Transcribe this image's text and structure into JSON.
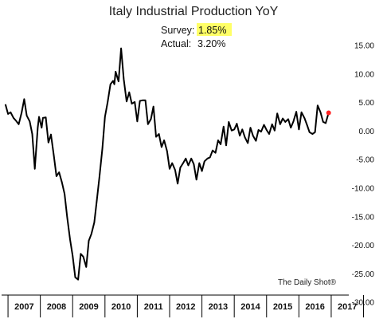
{
  "chart_data": {
    "type": "line",
    "title": "Italy Industrial Production YoY",
    "annotations": {
      "survey_label": "Survey:",
      "survey_value": "1.85%",
      "survey_highlight": "#ffff66",
      "actual_label": "Actual:",
      "actual_value": "3.20%"
    },
    "source": "The Daily Shot®",
    "x_tick_labels": [
      "2007",
      "2008",
      "2009",
      "2010",
      "2011",
      "2012",
      "2013",
      "2014",
      "2015",
      "2016",
      "2017"
    ],
    "xlim": [
      2006.9,
      2017.1
    ],
    "ylim": [
      -30,
      17
    ],
    "y_ticks": [
      {
        "v": 15,
        "label": "15.00"
      },
      {
        "v": 10,
        "label": "10.00"
      },
      {
        "v": 5,
        "label": "5.00"
      },
      {
        "v": 0,
        "label": "0.00"
      },
      {
        "v": -5,
        "label": "-5.00"
      },
      {
        "v": -10,
        "label": "-10.00"
      },
      {
        "v": -15,
        "label": "-15.00"
      },
      {
        "v": -20,
        "label": "-20.00"
      },
      {
        "v": -25,
        "label": "-25.00"
      },
      {
        "v": -30,
        "label": "-30.00"
      }
    ],
    "grid": false,
    "y_axis_position": "right",
    "line_color": "#000000",
    "last_point_color": "#ff2222",
    "series": [
      {
        "values": [
          [
            2006.92,
            4.7
          ],
          [
            2007.0,
            3.0
          ],
          [
            2007.08,
            3.3
          ],
          [
            2007.17,
            2.3
          ],
          [
            2007.25,
            1.8
          ],
          [
            2007.33,
            1.2
          ],
          [
            2007.42,
            3.2
          ],
          [
            2007.5,
            5.6
          ],
          [
            2007.58,
            2.7
          ],
          [
            2007.67,
            1.7
          ],
          [
            2007.75,
            -0.5
          ],
          [
            2007.83,
            -6.6
          ],
          [
            2007.92,
            0.6
          ],
          [
            2007.96,
            2.5
          ],
          [
            2008.04,
            0.6
          ],
          [
            2008.08,
            2.3
          ],
          [
            2008.17,
            2.4
          ],
          [
            2008.25,
            -2.0
          ],
          [
            2008.33,
            -0.6
          ],
          [
            2008.42,
            -4.4
          ],
          [
            2008.5,
            -7.9
          ],
          [
            2008.58,
            -7.2
          ],
          [
            2008.67,
            -9.0
          ],
          [
            2008.75,
            -11.0
          ],
          [
            2008.83,
            -15.0
          ],
          [
            2008.92,
            -19.0
          ],
          [
            2009.0,
            -21.8
          ],
          [
            2009.08,
            -25.6
          ],
          [
            2009.17,
            -26.0
          ],
          [
            2009.25,
            -21.5
          ],
          [
            2009.33,
            -22.0
          ],
          [
            2009.42,
            -23.8
          ],
          [
            2009.5,
            -19.2
          ],
          [
            2009.58,
            -18.0
          ],
          [
            2009.67,
            -16.0
          ],
          [
            2009.75,
            -12.0
          ],
          [
            2009.83,
            -8.0
          ],
          [
            2009.92,
            -3.0
          ],
          [
            2010.0,
            2.5
          ],
          [
            2010.08,
            5.0
          ],
          [
            2010.17,
            8.2
          ],
          [
            2010.25,
            8.8
          ],
          [
            2010.29,
            8.2
          ],
          [
            2010.33,
            10.4
          ],
          [
            2010.42,
            8.7
          ],
          [
            2010.5,
            14.5
          ],
          [
            2010.58,
            9.1
          ],
          [
            2010.67,
            5.2
          ],
          [
            2010.75,
            6.8
          ],
          [
            2010.83,
            4.8
          ],
          [
            2010.92,
            5.1
          ],
          [
            2011.0,
            1.7
          ],
          [
            2011.08,
            5.3
          ],
          [
            2011.17,
            5.4
          ],
          [
            2011.25,
            5.4
          ],
          [
            2011.33,
            1.2
          ],
          [
            2011.42,
            2.1
          ],
          [
            2011.5,
            4.3
          ],
          [
            2011.58,
            -1.0
          ],
          [
            2011.67,
            -0.5
          ],
          [
            2011.75,
            -2.8
          ],
          [
            2011.83,
            -1.6
          ],
          [
            2011.92,
            -3.5
          ],
          [
            2012.0,
            -6.6
          ],
          [
            2012.08,
            -5.6
          ],
          [
            2012.17,
            -6.8
          ],
          [
            2012.25,
            -9.2
          ],
          [
            2012.33,
            -6.4
          ],
          [
            2012.42,
            -5.6
          ],
          [
            2012.5,
            -4.8
          ],
          [
            2012.58,
            -6.0
          ],
          [
            2012.67,
            -4.8
          ],
          [
            2012.75,
            -5.8
          ],
          [
            2012.83,
            -8.5
          ],
          [
            2012.92,
            -5.6
          ],
          [
            2013.0,
            -7.0
          ],
          [
            2013.08,
            -5.3
          ],
          [
            2013.17,
            -4.8
          ],
          [
            2013.25,
            -4.6
          ],
          [
            2013.33,
            -3.4
          ],
          [
            2013.42,
            -3.8
          ],
          [
            2013.5,
            -1.6
          ],
          [
            2013.58,
            -2.3
          ],
          [
            2013.67,
            0.8
          ],
          [
            2013.75,
            -2.5
          ],
          [
            2013.83,
            1.6
          ],
          [
            2013.92,
            0.1
          ],
          [
            2014.0,
            0.3
          ],
          [
            2014.08,
            1.3
          ],
          [
            2014.17,
            -0.8
          ],
          [
            2014.25,
            0.3
          ],
          [
            2014.33,
            -1.1
          ],
          [
            2014.42,
            -2.1
          ],
          [
            2014.5,
            0.6
          ],
          [
            2014.58,
            -0.8
          ],
          [
            2014.67,
            -1.7
          ],
          [
            2014.75,
            0.2
          ],
          [
            2014.83,
            -0.1
          ],
          [
            2014.92,
            1.1
          ],
          [
            2015.0,
            0.2
          ],
          [
            2015.08,
            -0.5
          ],
          [
            2015.17,
            1.2
          ],
          [
            2015.25,
            0.1
          ],
          [
            2015.33,
            3.1
          ],
          [
            2015.42,
            1.2
          ],
          [
            2015.5,
            2.2
          ],
          [
            2015.58,
            1.6
          ],
          [
            2015.67,
            2.1
          ],
          [
            2015.75,
            0.6
          ],
          [
            2015.83,
            1.7
          ],
          [
            2015.92,
            3.4
          ],
          [
            2016.0,
            0.3
          ],
          [
            2016.08,
            3.3
          ],
          [
            2016.17,
            2.3
          ],
          [
            2016.25,
            1.1
          ],
          [
            2016.33,
            -0.2
          ],
          [
            2016.42,
            -0.5
          ],
          [
            2016.5,
            -0.2
          ],
          [
            2016.58,
            4.5
          ],
          [
            2016.67,
            3.3
          ],
          [
            2016.75,
            1.6
          ],
          [
            2016.83,
            1.4
          ],
          [
            2016.92,
            3.2
          ]
        ]
      }
    ]
  }
}
